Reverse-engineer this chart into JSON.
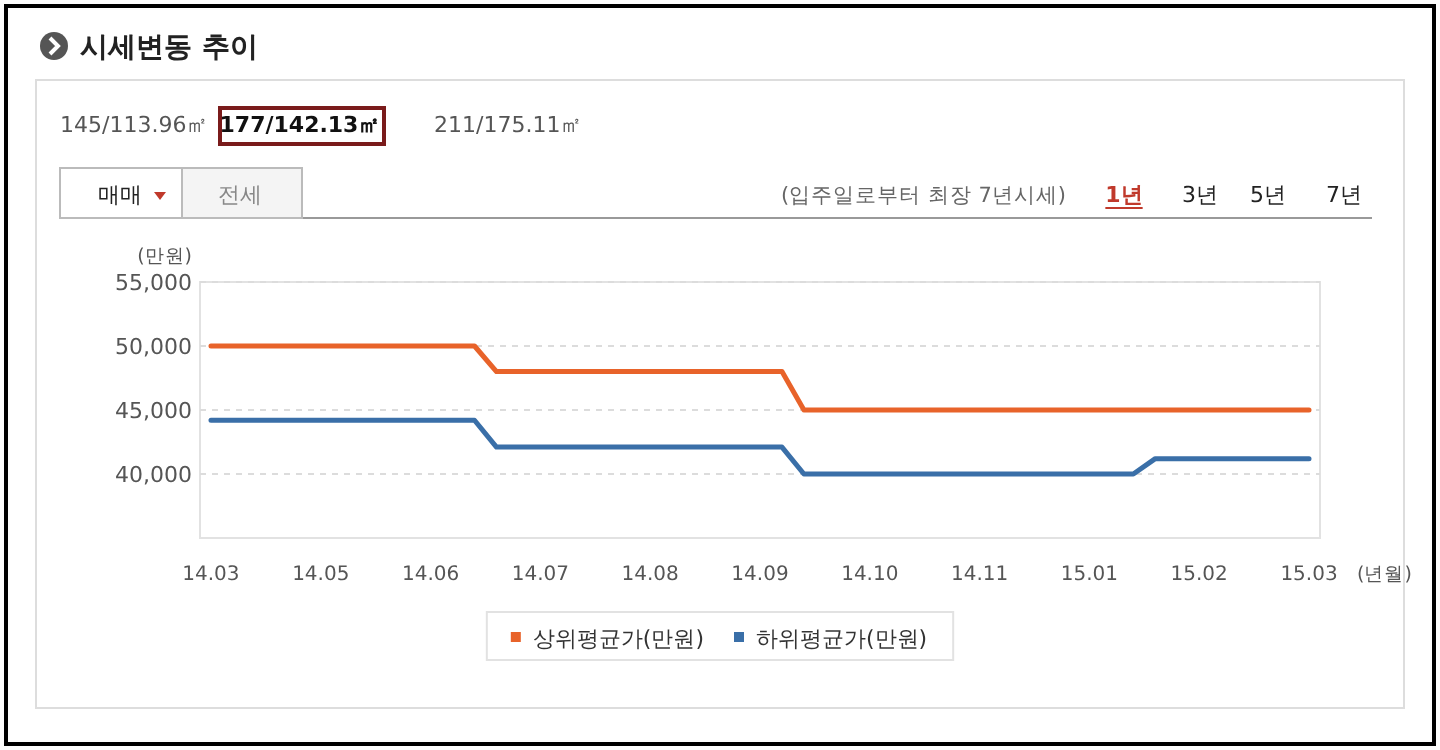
{
  "chart_data": {
    "type": "line",
    "title": "시세변동 추이",
    "ylabel": "(만원)",
    "xlabel": "(년월)",
    "annotations": [
      "145/113.96㎡",
      "177/142.13㎡",
      "211/175.11㎡",
      "매매",
      "전세",
      "(입주일로부터 최장 7년시세)",
      "1년",
      "3년",
      "5년",
      "7년"
    ],
    "categories": [
      "14.03",
      null,
      null,
      null,
      null,
      "14.05",
      null,
      null,
      null,
      null,
      "14.06",
      null,
      null,
      null,
      null,
      "14.07",
      null,
      null,
      null,
      null,
      "14.08",
      null,
      null,
      null,
      null,
      "14.09",
      null,
      null,
      null,
      null,
      "14.10",
      null,
      null,
      null,
      null,
      "14.11",
      null,
      null,
      null,
      null,
      "15.01",
      null,
      null,
      null,
      null,
      "15.02",
      null,
      null,
      null,
      null,
      "15.03"
    ],
    "series": [
      {
        "name": "상위평균가(만원)",
        "color": "#e8632a",
        "values": [
          50000,
          50000,
          50000,
          50000,
          50000,
          50000,
          50000,
          50000,
          50000,
          50000,
          50000,
          50000,
          50000,
          48000,
          48000,
          48000,
          48000,
          48000,
          48000,
          48000,
          48000,
          48000,
          48000,
          48000,
          48000,
          48000,
          48000,
          45000,
          45000,
          45000,
          45000,
          45000,
          45000,
          45000,
          45000,
          45000,
          45000,
          45000,
          45000,
          45000,
          45000,
          45000,
          45000,
          45000,
          45000,
          45000,
          45000,
          45000,
          45000,
          45000,
          45000
        ]
      },
      {
        "name": "하위평균가(만원)",
        "color": "#3a6fa8",
        "values": [
          44200,
          44200,
          44200,
          44200,
          44200,
          44200,
          44200,
          44200,
          44200,
          44200,
          44200,
          44200,
          44200,
          42100,
          42100,
          42100,
          42100,
          42100,
          42100,
          42100,
          42100,
          42100,
          42100,
          42100,
          42100,
          42100,
          42100,
          40000,
          40000,
          40000,
          40000,
          40000,
          40000,
          40000,
          40000,
          40000,
          40000,
          40000,
          40000,
          40000,
          40000,
          40000,
          40000,
          41200,
          41200,
          41200,
          41200,
          41200,
          41200,
          41200,
          41200
        ]
      }
    ],
    "ylim": [
      35000,
      55000
    ],
    "yticks": [
      {
        "value": 40000,
        "label": "40,000"
      },
      {
        "value": 45000,
        "label": "45,000"
      },
      {
        "value": 50000,
        "label": "50,000"
      },
      {
        "value": 55000,
        "label": "55,000"
      }
    ],
    "grid": "y",
    "legend": "bottom"
  }
}
